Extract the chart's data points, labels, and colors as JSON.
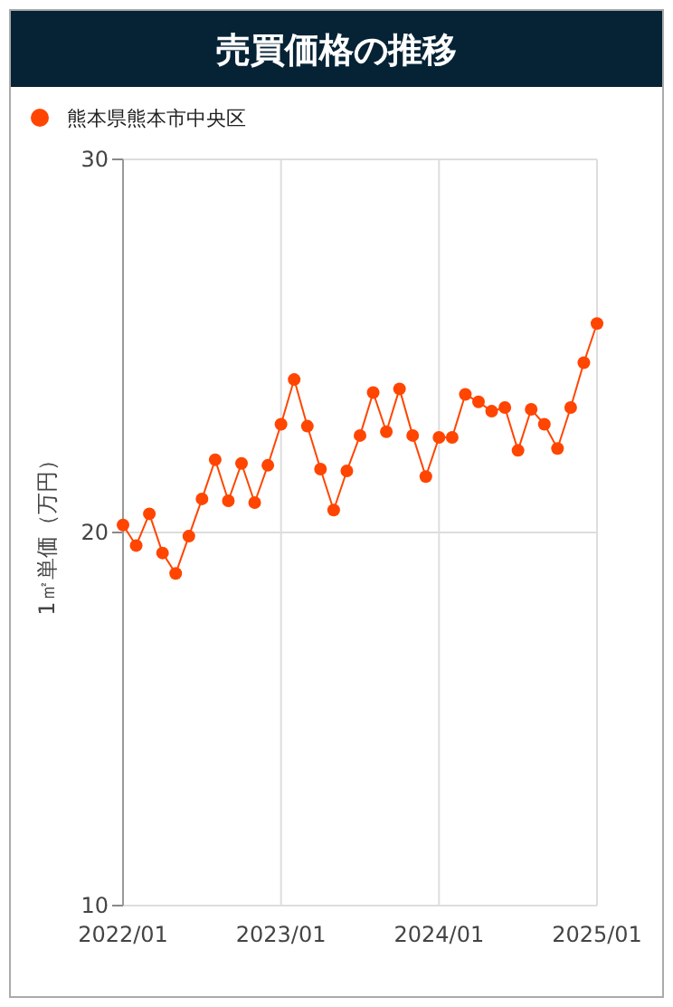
{
  "chart_data": {
    "type": "line",
    "title": "売買価格の推移",
    "ylabel": "1㎡単価（万円）",
    "x": [
      "2022-01",
      "2022-02",
      "2022-03",
      "2022-04",
      "2022-05",
      "2022-06",
      "2022-07",
      "2022-08",
      "2022-09",
      "2022-10",
      "2022-11",
      "2022-12",
      "2023-01",
      "2023-02",
      "2023-03",
      "2023-04",
      "2023-05",
      "2023-06",
      "2023-07",
      "2023-08",
      "2023-09",
      "2023-10",
      "2023-11",
      "2023-12",
      "2024-01",
      "2024-02",
      "2024-03",
      "2024-04",
      "2024-05",
      "2024-06",
      "2024-07",
      "2024-08",
      "2024-09",
      "2024-10",
      "2024-11",
      "2024-12",
      "2025-01"
    ],
    "series": [
      {
        "name": "熊本県熊本市中央区",
        "color": "#ff4500",
        "values": [
          20.2,
          19.65,
          20.5,
          19.45,
          18.9,
          19.9,
          20.9,
          21.95,
          20.85,
          21.85,
          20.8,
          21.8,
          22.9,
          24.1,
          22.85,
          21.7,
          20.6,
          21.65,
          22.6,
          23.75,
          22.7,
          23.85,
          22.6,
          21.5,
          22.55,
          22.55,
          23.7,
          23.5,
          23.25,
          23.35,
          22.2,
          23.3,
          22.9,
          22.25,
          23.35,
          24.55,
          25.6
        ]
      }
    ],
    "xlim": [
      "2022-01",
      "2025-01"
    ],
    "xticks": [
      {
        "value": "2022-01",
        "label": "2022/01"
      },
      {
        "value": "2023-01",
        "label": "2023/01"
      },
      {
        "value": "2024-01",
        "label": "2024/01"
      },
      {
        "value": "2025-01",
        "label": "2025/01"
      }
    ],
    "ylim": [
      10,
      30
    ],
    "yticks": [
      10,
      20,
      30
    ],
    "grid": true,
    "legend": "top left",
    "marker": "circle",
    "line_style": "solid"
  }
}
